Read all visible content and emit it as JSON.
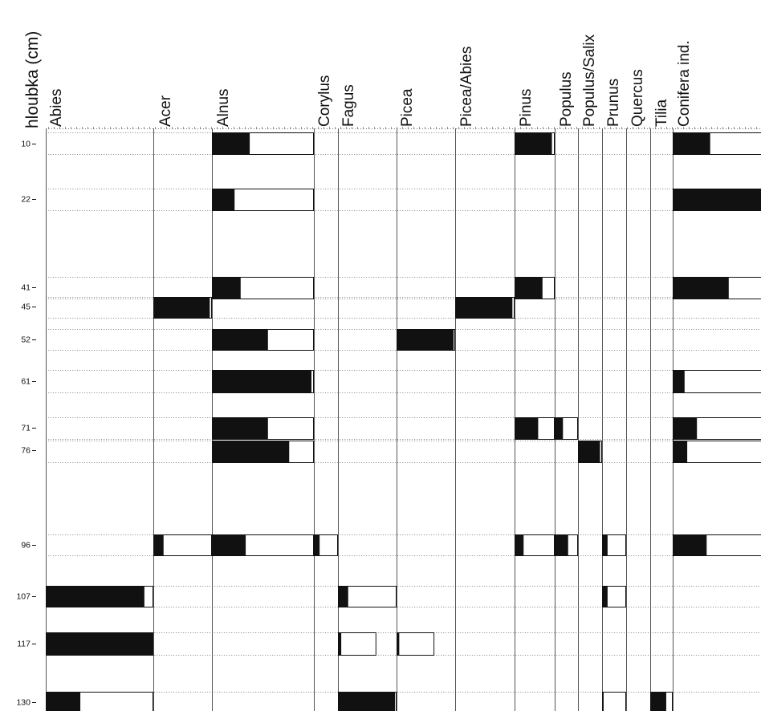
{
  "chart_data": {
    "type": "bar",
    "ylabel": "hloubka (cm)",
    "depths": [
      10,
      22,
      41,
      45,
      52,
      61,
      71,
      76,
      96,
      107,
      117,
      130
    ],
    "taxa": [
      {
        "name": "Abies",
        "box": [
          0,
          0,
          0,
          0,
          0,
          0,
          0,
          0,
          0,
          100,
          100,
          100
        ],
        "fill": [
          0,
          0,
          0,
          0,
          0,
          0,
          0,
          0,
          0,
          92,
          100,
          32
        ]
      },
      {
        "name": "Acer",
        "box": [
          0,
          0,
          0,
          100,
          0,
          0,
          0,
          0,
          100,
          0,
          0,
          0
        ],
        "fill": [
          0,
          0,
          0,
          97,
          0,
          0,
          0,
          0,
          17,
          0,
          0,
          0
        ]
      },
      {
        "name": "Alnus",
        "box": [
          100,
          100,
          100,
          0,
          100,
          100,
          100,
          100,
          100,
          0,
          0,
          0
        ],
        "fill": [
          37,
          22,
          28,
          0,
          55,
          98,
          55,
          76,
          33,
          0,
          0,
          0
        ]
      },
      {
        "name": "Corylus",
        "box": [
          0,
          0,
          0,
          0,
          0,
          0,
          0,
          0,
          100,
          0,
          0,
          0
        ],
        "fill": [
          0,
          0,
          0,
          0,
          0,
          0,
          0,
          0,
          23,
          0,
          0,
          0
        ]
      },
      {
        "name": "Fagus",
        "box": [
          0,
          0,
          0,
          0,
          0,
          0,
          0,
          0,
          0,
          100,
          65,
          100
        ],
        "fill": [
          0,
          0,
          0,
          0,
          0,
          0,
          0,
          0,
          0,
          17,
          5,
          98
        ]
      },
      {
        "name": "Picea",
        "box": [
          0,
          0,
          0,
          0,
          100,
          0,
          0,
          0,
          0,
          0,
          64,
          0
        ],
        "fill": [
          0,
          0,
          0,
          0,
          98,
          0,
          0,
          0,
          0,
          0,
          4,
          0
        ]
      },
      {
        "name": "Picea/Abies",
        "box": [
          0,
          0,
          0,
          100,
          0,
          0,
          0,
          0,
          0,
          0,
          0,
          0
        ],
        "fill": [
          0,
          0,
          0,
          97,
          0,
          0,
          0,
          0,
          0,
          0,
          0,
          0
        ]
      },
      {
        "name": "Pinus",
        "box": [
          100,
          0,
          100,
          0,
          0,
          0,
          100,
          0,
          100,
          0,
          0,
          0
        ],
        "fill": [
          94,
          0,
          70,
          0,
          0,
          0,
          59,
          0,
          22,
          0,
          0,
          0
        ]
      },
      {
        "name": "Populus",
        "box": [
          0,
          0,
          0,
          0,
          0,
          0,
          100,
          0,
          100,
          0,
          0,
          0
        ],
        "fill": [
          0,
          0,
          0,
          0,
          0,
          0,
          35,
          0,
          58,
          0,
          0,
          0
        ]
      },
      {
        "name": "Populus/Salix",
        "box": [
          0,
          0,
          0,
          0,
          0,
          0,
          0,
          100,
          0,
          0,
          0,
          0
        ],
        "fill": [
          0,
          0,
          0,
          0,
          0,
          0,
          0,
          93,
          0,
          0,
          0,
          0
        ]
      },
      {
        "name": "Prunus",
        "box": [
          0,
          0,
          0,
          0,
          0,
          0,
          0,
          0,
          100,
          100,
          0,
          100
        ],
        "fill": [
          0,
          0,
          0,
          0,
          0,
          0,
          0,
          0,
          22,
          22,
          0,
          5
        ]
      },
      {
        "name": "Quercus",
        "box": [
          0,
          0,
          0,
          0,
          0,
          0,
          0,
          0,
          0,
          0,
          0,
          0
        ],
        "fill": [
          0,
          0,
          0,
          0,
          0,
          0,
          0,
          0,
          0,
          0,
          0,
          0
        ]
      },
      {
        "name": "Tilia",
        "box": [
          0,
          0,
          0,
          0,
          0,
          0,
          0,
          0,
          0,
          0,
          0,
          100
        ],
        "fill": [
          0,
          0,
          0,
          0,
          0,
          0,
          0,
          0,
          0,
          0,
          0,
          72
        ]
      },
      {
        "name": "Conifera ind.",
        "box": [
          100,
          100,
          100,
          0,
          0,
          100,
          100,
          100,
          100,
          0,
          0,
          0
        ],
        "fill": [
          42,
          100,
          63,
          0,
          0,
          13,
          27,
          16,
          38,
          0,
          0,
          0
        ]
      }
    ]
  }
}
